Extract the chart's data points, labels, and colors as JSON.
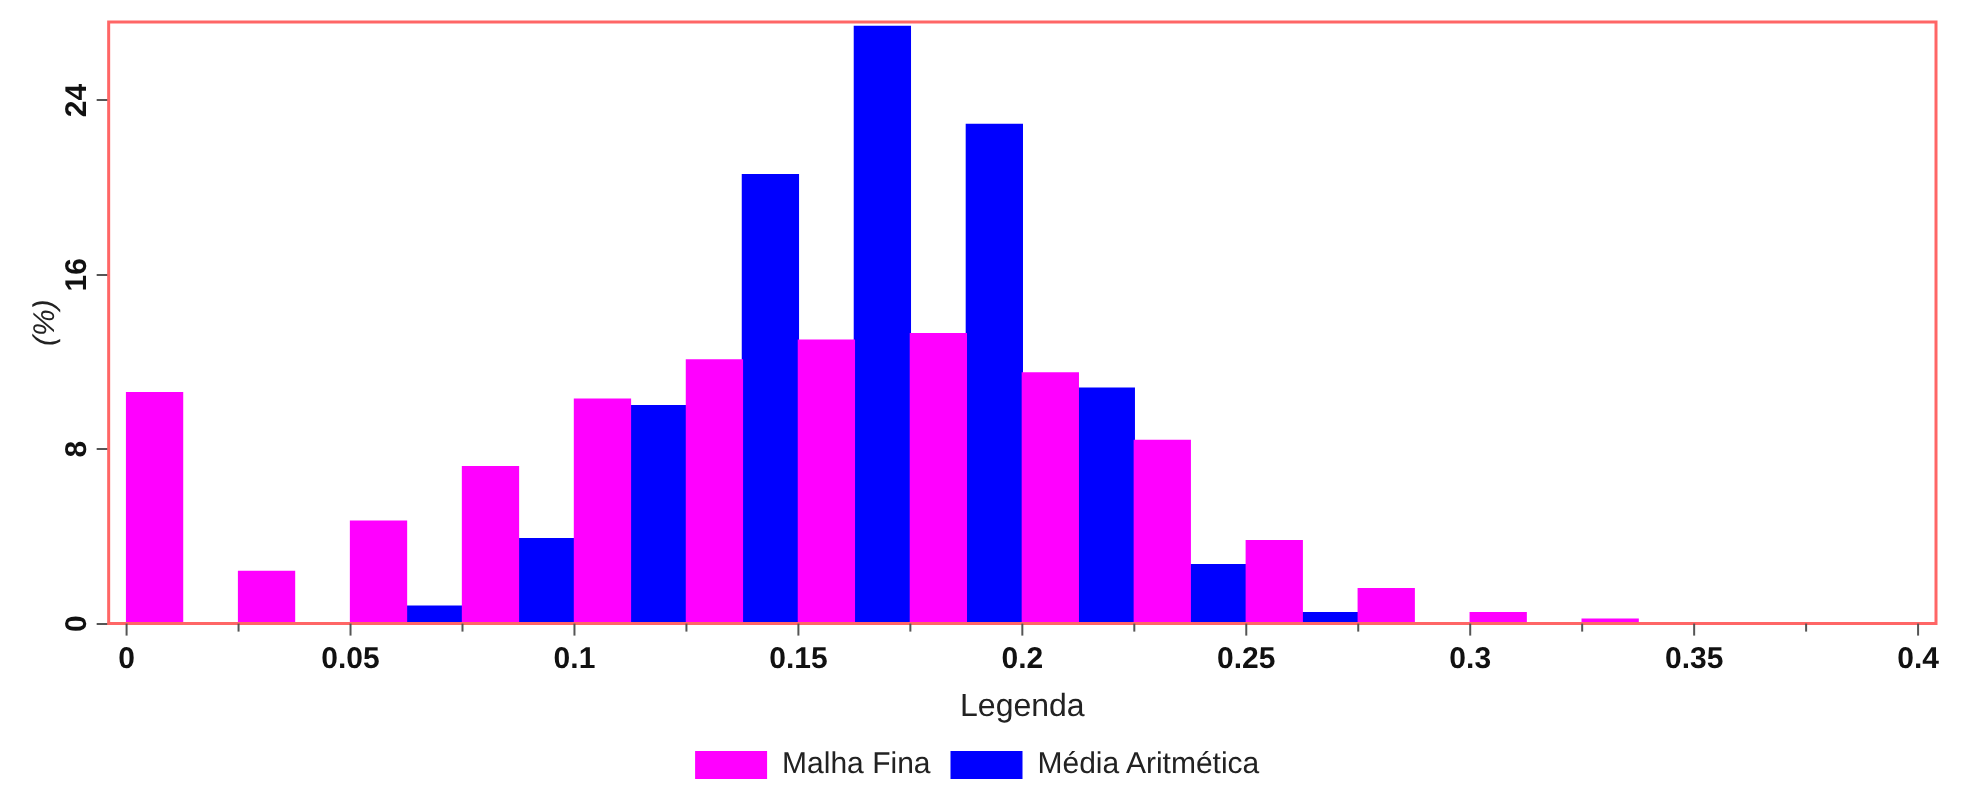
{
  "chart_data": {
    "type": "histogram",
    "xlabel": "Legenda",
    "ylabel": "(%)",
    "bins": [
      0,
      0.025,
      0.05,
      0.075,
      0.1,
      0.125,
      0.15,
      0.175,
      0.2,
      0.225,
      0.25,
      0.275,
      0.3,
      0.325,
      0.35
    ],
    "series": [
      {
        "name": "Malha Fina",
        "color": "#ff00ff",
        "values": [
          10.6,
          2.4,
          4.7,
          7.2,
          10.3,
          12.1,
          13.0,
          13.3,
          11.5,
          8.4,
          3.8,
          1.6,
          0.5,
          0.2
        ]
      },
      {
        "name": "Média Aritmética",
        "color": "#0000ff",
        "values": [
          0,
          0,
          0.8,
          3.9,
          10.0,
          20.6,
          27.4,
          22.9,
          10.8,
          2.7,
          0.5,
          null,
          0,
          0
        ]
      }
    ],
    "xlim": [
      -0.004,
      0.404
    ],
    "xticks": [
      0,
      {
        "value": 0.025,
        "label": null
      },
      0.05,
      {
        "value": 0.075,
        "label": null
      },
      0.1,
      {
        "value": 0.125,
        "label": null
      },
      0.15,
      {
        "value": 0.175,
        "label": null
      },
      0.2,
      {
        "value": 0.225,
        "label": null
      },
      0.25,
      {
        "value": 0.275,
        "label": null
      },
      0.3,
      {
        "value": 0.325,
        "label": null
      },
      0.35,
      {
        "value": 0.375,
        "label": null
      },
      0.4
    ],
    "ylim": [
      0,
      27.6
    ],
    "yticks": [
      0,
      8,
      16,
      24
    ],
    "grid": false,
    "legend": "bottom"
  }
}
